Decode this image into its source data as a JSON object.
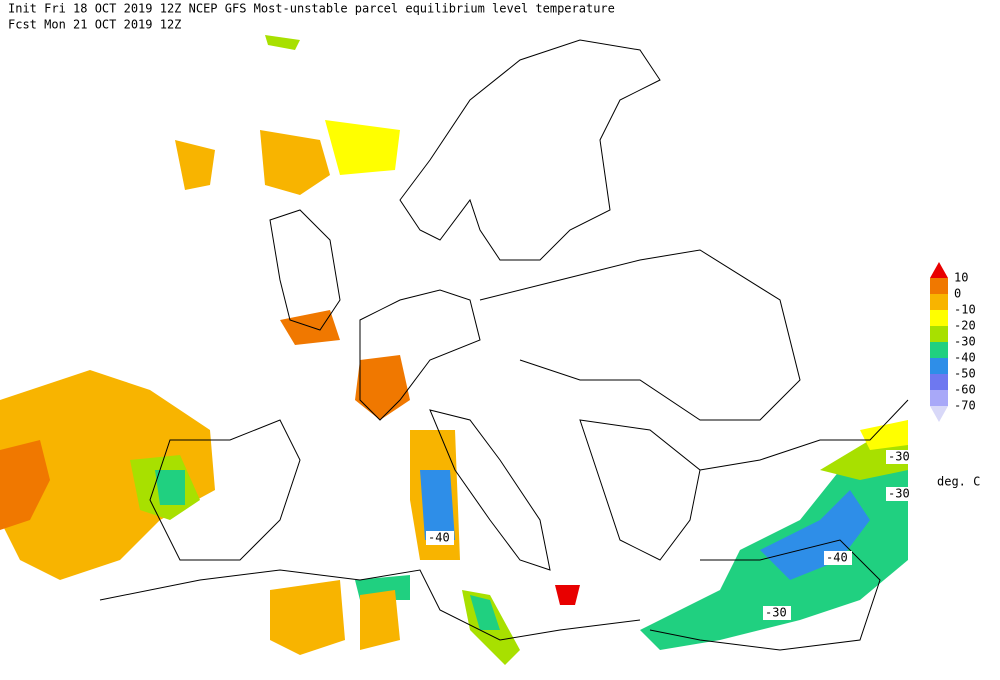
{
  "header": {
    "line1": "Init  Fri 18 OCT 2019 12Z   NCEP GFS Most-unstable parcel equilibrium level temperature",
    "line2": "Fcst Mon 21 OCT 2019 12Z"
  },
  "legend": {
    "levels": [
      10,
      0,
      -10,
      -20,
      -30,
      -40,
      -50,
      -60,
      -70
    ],
    "colors": [
      "#e80000",
      "#f07800",
      "#f8b400",
      "#ffff00",
      "#a8e000",
      "#20d080",
      "#2e8ee8",
      "#6e78f0",
      "#a8a8f8",
      "#d8d8f8"
    ],
    "units": "deg. C"
  },
  "contour_labels": [
    -40,
    -30,
    -30,
    -40,
    -30
  ]
}
